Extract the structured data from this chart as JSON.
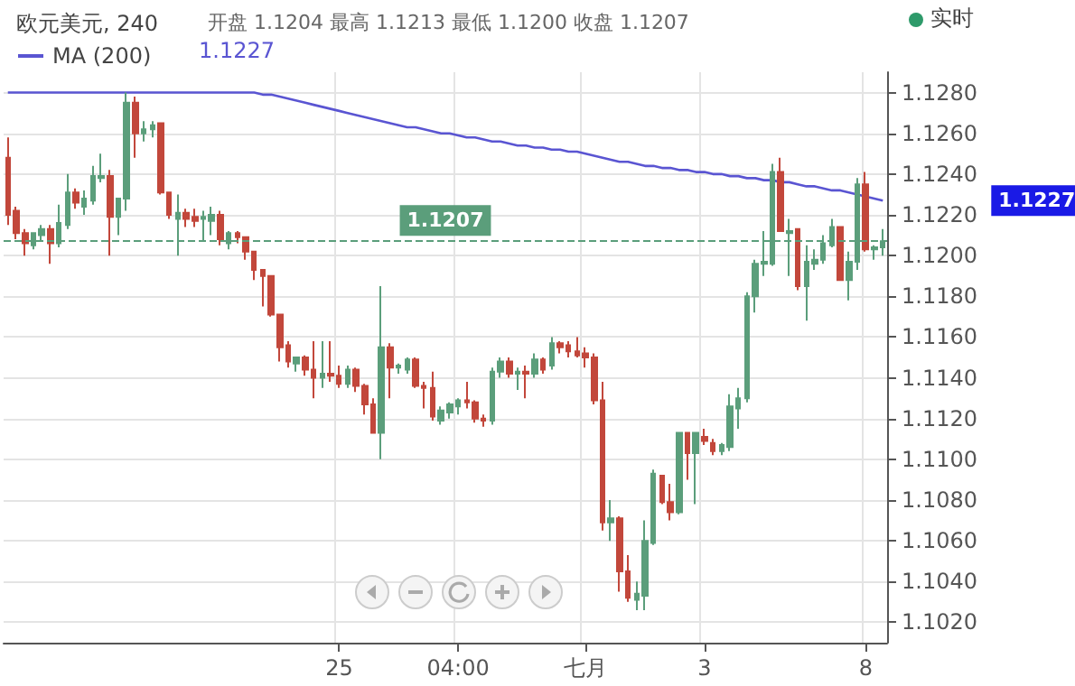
{
  "chart_data": {
    "type": "candlestick",
    "title": "欧元美元, 240",
    "subtitle": "开盘 1.1204 最高 1.1213 最低 1.1200 收盘 1.1207",
    "annotations": [
      "实时",
      "1.1227",
      "1.1227"
    ],
    "categories": [
      null,
      null,
      null,
      null,
      null,
      null,
      null,
      null,
      null,
      null,
      null,
      null,
      null,
      null,
      null,
      null,
      null,
      null,
      null,
      null,
      null,
      null,
      null,
      null,
      null,
      null,
      null,
      null,
      null,
      null,
      null,
      null,
      null,
      null,
      null,
      null,
      null,
      null,
      null,
      "25",
      null,
      null,
      null,
      null,
      null,
      null,
      null,
      null,
      null,
      null,
      null,
      null,
      null,
      "04:00",
      null,
      null,
      null,
      null,
      null,
      null,
      null,
      null,
      null,
      null,
      null,
      null,
      null,
      null,
      "七月",
      null,
      null,
      null,
      null,
      null,
      null,
      null,
      null,
      null,
      null,
      null,
      null,
      null,
      "3",
      null,
      null,
      null,
      null,
      null,
      null,
      null,
      null,
      null,
      null,
      null,
      null,
      null,
      null,
      null,
      null,
      null,
      null,
      "8",
      null,
      null
    ],
    "ohlc": [
      [
        1.1248,
        1.1258,
        1.1215,
        1.122
      ],
      [
        1.1222,
        1.1224,
        1.1208,
        1.1211
      ],
      [
        1.1211,
        1.1213,
        1.12,
        1.1206
      ],
      [
        1.1205,
        1.1211,
        1.1203,
        1.1211
      ],
      [
        1.121,
        1.1215,
        1.1207,
        1.1213
      ],
      [
        1.1213,
        1.1215,
        1.1196,
        1.1206
      ],
      [
        1.1206,
        1.1225,
        1.1204,
        1.1216
      ],
      [
        1.1215,
        1.124,
        1.1213,
        1.1231
      ],
      [
        1.1231,
        1.1233,
        1.1223,
        1.1226
      ],
      [
        1.1224,
        1.1232,
        1.122,
        1.1228
      ],
      [
        1.1227,
        1.1244,
        1.1225,
        1.1239
      ],
      [
        1.1238,
        1.125,
        1.1236,
        1.1239
      ],
      [
        1.1239,
        1.1242,
        1.12,
        1.1219
      ],
      [
        1.1219,
        1.1228,
        1.121,
        1.1228
      ],
      [
        1.1228,
        1.128,
        1.1222,
        1.1275
      ],
      [
        1.1275,
        1.1278,
        1.1248,
        1.126
      ],
      [
        1.126,
        1.1266,
        1.1256,
        1.1262
      ],
      [
        1.1262,
        1.1266,
        1.1258,
        1.1264
      ],
      [
        1.1265,
        1.1265,
        1.123,
        1.1231
      ],
      [
        1.1231,
        1.1231,
        1.1218,
        1.122
      ],
      [
        1.1218,
        1.123,
        1.12,
        1.1221
      ],
      [
        1.1221,
        1.1223,
        1.1214,
        1.1218
      ],
      [
        1.1219,
        1.1223,
        1.1214,
        1.1217
      ],
      [
        1.1218,
        1.1222,
        1.1207,
        1.1219
      ],
      [
        1.1217,
        1.1224,
        1.121,
        1.122
      ],
      [
        1.122,
        1.1222,
        1.1205,
        1.1208
      ],
      [
        1.1206,
        1.1212,
        1.1203,
        1.1211
      ],
      [
        1.1211,
        1.1212,
        1.1206,
        1.1209
      ],
      [
        1.1209,
        1.1209,
        1.1198,
        1.1202
      ],
      [
        1.1202,
        1.1202,
        1.1188,
        1.1193
      ],
      [
        1.1193,
        1.1193,
        1.1175,
        1.119
      ],
      [
        1.119,
        1.119,
        1.117,
        1.1171
      ],
      [
        1.1171,
        1.1171,
        1.1148,
        1.1155
      ],
      [
        1.1156,
        1.1158,
        1.1145,
        1.1148
      ],
      [
        1.1147,
        1.115,
        1.1143,
        1.115
      ],
      [
        1.115,
        1.1151,
        1.1141,
        1.1144
      ],
      [
        1.1144,
        1.1158,
        1.113,
        1.114
      ],
      [
        1.114,
        1.1158,
        1.1135,
        1.1142
      ],
      [
        1.1142,
        1.1158,
        1.1138,
        1.1141
      ],
      [
        1.1141,
        1.1146,
        1.1135,
        1.1137
      ],
      [
        1.1137,
        1.1146,
        1.1135,
        1.1144
      ],
      [
        1.1144,
        1.1145,
        1.1133,
        1.1136
      ],
      [
        1.1136,
        1.1137,
        1.1122,
        1.1127
      ],
      [
        1.1127,
        1.113,
        1.1113,
        1.1113
      ],
      [
        1.1113,
        1.1185,
        1.11,
        1.1155
      ],
      [
        1.1155,
        1.1157,
        1.113,
        1.1145
      ],
      [
        1.1145,
        1.1147,
        1.1142,
        1.1146
      ],
      [
        1.1144,
        1.115,
        1.1142,
        1.1149
      ],
      [
        1.1149,
        1.115,
        1.1135,
        1.1136
      ],
      [
        1.1136,
        1.1138,
        1.1125,
        1.1135
      ],
      [
        1.1135,
        1.1143,
        1.1119,
        1.1121
      ],
      [
        1.1119,
        1.1126,
        1.1117,
        1.1124
      ],
      [
        1.1123,
        1.1128,
        1.112,
        1.1127
      ],
      [
        1.1126,
        1.113,
        1.1122,
        1.1129
      ],
      [
        1.1129,
        1.1138,
        1.1125,
        1.1128
      ],
      [
        1.1128,
        1.1129,
        1.1118,
        1.112
      ],
      [
        1.112,
        1.1122,
        1.1116,
        1.1119
      ],
      [
        1.1119,
        1.1145,
        1.1117,
        1.1143
      ],
      [
        1.1143,
        1.115,
        1.114,
        1.1148
      ],
      [
        1.1148,
        1.115,
        1.114,
        1.1142
      ],
      [
        1.1142,
        1.1145,
        1.1134,
        1.1143
      ],
      [
        1.1143,
        1.1146,
        1.113,
        1.1142
      ],
      [
        1.1142,
        1.1152,
        1.114,
        1.1149
      ],
      [
        1.1149,
        1.115,
        1.1142,
        1.1144
      ],
      [
        1.1146,
        1.116,
        1.1144,
        1.1157
      ],
      [
        1.1157,
        1.1158,
        1.1152,
        1.1155
      ],
      [
        1.1156,
        1.1158,
        1.115,
        1.1153
      ],
      [
        1.1153,
        1.116,
        1.115,
        1.1151
      ],
      [
        1.1152,
        1.1155,
        1.1145,
        1.115
      ],
      [
        1.115,
        1.1152,
        1.1127,
        1.1129
      ],
      [
        1.1129,
        1.1138,
        1.1065,
        1.1069
      ],
      [
        1.1069,
        1.108,
        1.106,
        1.1071
      ],
      [
        1.1071,
        1.1072,
        1.1035,
        1.1045
      ],
      [
        1.1045,
        1.1053,
        1.103,
        1.1032
      ],
      [
        1.1031,
        1.104,
        1.1026,
        1.1034
      ],
      [
        1.1033,
        1.107,
        1.1026,
        1.106
      ],
      [
        1.1059,
        1.1095,
        1.1058,
        1.1093
      ],
      [
        1.1092,
        1.1092,
        1.1078,
        1.1079
      ],
      [
        1.1079,
        1.1088,
        1.107,
        1.1074
      ],
      [
        1.1074,
        1.1113,
        1.1073,
        1.1113
      ],
      [
        1.1113,
        1.1113,
        1.109,
        1.1103
      ],
      [
        1.1103,
        1.1113,
        1.1078,
        1.1113
      ],
      [
        1.1111,
        1.1115,
        1.1107,
        1.1109
      ],
      [
        1.1108,
        1.111,
        1.1102,
        1.1104
      ],
      [
        1.1104,
        1.1108,
        1.1102,
        1.1107
      ],
      [
        1.1106,
        1.1132,
        1.1104,
        1.1126
      ],
      [
        1.1125,
        1.1135,
        1.1115,
        1.113
      ],
      [
        1.113,
        1.1182,
        1.1128,
        1.118
      ],
      [
        1.118,
        1.1198,
        1.1172,
        1.1196
      ],
      [
        1.1196,
        1.1212,
        1.119,
        1.1197
      ],
      [
        1.1196,
        1.1245,
        1.1195,
        1.1241
      ],
      [
        1.1241,
        1.1248,
        1.1212,
        1.1212
      ],
      [
        1.1211,
        1.1218,
        1.119,
        1.1212
      ],
      [
        1.1213,
        1.1213,
        1.1183,
        1.1185
      ],
      [
        1.1185,
        1.1205,
        1.1168,
        1.1197
      ],
      [
        1.1196,
        1.1203,
        1.1193,
        1.1198
      ],
      [
        1.1198,
        1.121,
        1.1196,
        1.1206
      ],
      [
        1.1205,
        1.1218,
        1.1204,
        1.1214
      ],
      [
        1.1214,
        1.1214,
        1.1188,
        1.1188
      ],
      [
        1.1188,
        1.1202,
        1.1178,
        1.1197
      ],
      [
        1.1197,
        1.1238,
        1.1193,
        1.1235
      ],
      [
        1.1235,
        1.1241,
        1.1202,
        1.1203
      ],
      [
        1.1203,
        1.1205,
        1.1198,
        1.1204
      ],
      [
        1.1204,
        1.1213,
        1.12,
        1.1207
      ]
    ],
    "colors": [
      "#c2473b",
      "#c2473b",
      "#c2473b",
      "#5b9e7b",
      "#5b9e7b",
      "#c2473b",
      "#5b9e7b",
      "#5b9e7b",
      "#c2473b",
      "#5b9e7b",
      "#5b9e7b",
      "#5b9e7b",
      "#c2473b",
      "#5b9e7b",
      "#5b9e7b",
      "#c2473b",
      "#5b9e7b",
      "#5b9e7b",
      "#c2473b",
      "#c2473b",
      "#5b9e7b",
      "#c2473b",
      "#c2473b",
      "#5b9e7b",
      "#5b9e7b",
      "#c2473b",
      "#5b9e7b",
      "#c2473b",
      "#c2473b",
      "#c2473b",
      "#c2473b",
      "#c2473b",
      "#c2473b",
      "#c2473b",
      "#5b9e7b",
      "#c2473b",
      "#c2473b",
      "#5b9e7b",
      "#c2473b",
      "#c2473b",
      "#5b9e7b",
      "#c2473b",
      "#c2473b",
      "#c2473b",
      "#5b9e7b",
      "#c2473b",
      "#5b9e7b",
      "#5b9e7b",
      "#c2473b",
      "#c2473b",
      "#c2473b",
      "#5b9e7b",
      "#5b9e7b",
      "#5b9e7b",
      "#c2473b",
      "#c2473b",
      "#c2473b",
      "#5b9e7b",
      "#5b9e7b",
      "#c2473b",
      "#5b9e7b",
      "#c2473b",
      "#5b9e7b",
      "#c2473b",
      "#5b9e7b",
      "#c2473b",
      "#c2473b",
      "#c2473b",
      "#c2473b",
      "#c2473b",
      "#c2473b",
      "#5b9e7b",
      "#c2473b",
      "#c2473b",
      "#5b9e7b",
      "#5b9e7b",
      "#5b9e7b",
      "#c2473b",
      "#c2473b",
      "#5b9e7b",
      "#c2473b",
      "#5b9e7b",
      "#c2473b",
      "#c2473b",
      "#5b9e7b",
      "#5b9e7b",
      "#5b9e7b",
      "#5b9e7b",
      "#5b9e7b",
      "#5b9e7b",
      "#5b9e7b",
      "#c2473b",
      "#5b9e7b",
      "#c2473b",
      "#5b9e7b",
      "#5b9e7b",
      "#5b9e7b",
      "#5b9e7b",
      "#c2473b",
      "#5b9e7b",
      "#5b9e7b",
      "#c2473b",
      "#5b9e7b",
      "#5b9e7b"
    ],
    "series": [
      {
        "type": "line",
        "name": "MA (200)",
        "color": "#5a55d2",
        "values": [
          1.128,
          1.128,
          1.128,
          1.128,
          1.128,
          1.128,
          1.128,
          1.128,
          1.128,
          1.128,
          1.128,
          1.128,
          1.128,
          1.128,
          1.128,
          1.128,
          1.128,
          1.128,
          1.128,
          1.128,
          1.128,
          1.128,
          1.128,
          1.128,
          1.128,
          1.128,
          1.128,
          1.128,
          1.128,
          1.128,
          1.1279,
          1.1279,
          1.1278,
          1.1277,
          1.1276,
          1.1275,
          1.1274,
          1.1273,
          1.1272,
          1.1271,
          1.127,
          1.1269,
          1.1268,
          1.1267,
          1.1266,
          1.1265,
          1.1264,
          1.1263,
          1.1263,
          1.1262,
          1.1261,
          1.126,
          1.126,
          1.1259,
          1.1258,
          1.1258,
          1.1257,
          1.1256,
          1.1256,
          1.1255,
          1.1254,
          1.1254,
          1.1253,
          1.1253,
          1.1252,
          1.1252,
          1.1251,
          1.1251,
          1.125,
          1.1249,
          1.1248,
          1.1247,
          1.1246,
          1.1246,
          1.1245,
          1.1244,
          1.1244,
          1.1243,
          1.1243,
          1.1242,
          1.1242,
          1.1241,
          1.1241,
          1.124,
          1.124,
          1.1239,
          1.1239,
          1.1238,
          1.1238,
          1.1237,
          1.1237,
          1.1236,
          1.1236,
          1.1235,
          1.1234,
          1.1234,
          1.1233,
          1.1232,
          1.1232,
          1.1231,
          1.123,
          1.1229,
          1.1228,
          1.1227
        ]
      }
    ],
    "ylim": [
      1.101,
      1.129
    ],
    "yticks": [
      {
        "value": 1.102,
        "label": "1.1020"
      },
      {
        "value": 1.104,
        "label": "1.1040"
      },
      {
        "value": 1.106,
        "label": "1.1060"
      },
      {
        "value": 1.108,
        "label": "1.1080"
      },
      {
        "value": 1.11,
        "label": "1.1100"
      },
      {
        "value": 1.112,
        "label": "1.1120"
      },
      {
        "value": 1.114,
        "label": "1.1140"
      },
      {
        "value": 1.116,
        "label": "1.1160"
      },
      {
        "value": 1.118,
        "label": "1.1180"
      },
      {
        "value": 1.12,
        "label": "1.1200"
      },
      {
        "value": 1.122,
        "label": "1.1220"
      },
      {
        "value": 1.124,
        "label": "1.1240"
      },
      {
        "value": 1.126,
        "label": "1.1260"
      },
      {
        "value": 1.128,
        "label": "1.1280"
      }
    ],
    "ref_lines": [
      {
        "axis": "y",
        "value": 1.1207,
        "label": "1.1207",
        "color": "#5b9e7b",
        "line_style": "dashed"
      }
    ],
    "grid": true,
    "legend": "top left",
    "marker": "none"
  }
}
